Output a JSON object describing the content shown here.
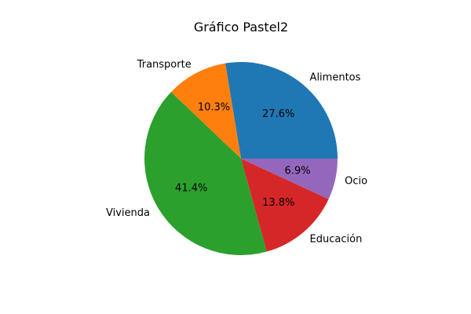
{
  "chart_data": {
    "type": "pie",
    "title": "Gráfico Pastel2",
    "start_angle_deg": 0,
    "direction": "counterclockwise",
    "slices": [
      {
        "label": "Alimentos",
        "value": 27.6,
        "pct_label": "27.6%",
        "color": "#1f77b4"
      },
      {
        "label": "Transporte",
        "value": 10.3,
        "pct_label": "10.3%",
        "color": "#ff7f0e"
      },
      {
        "label": "Vivienda",
        "value": 41.4,
        "pct_label": "41.4%",
        "color": "#2ca02c"
      },
      {
        "label": "Educación",
        "value": 13.8,
        "pct_label": "13.8%",
        "color": "#d62728"
      },
      {
        "label": "Ocio",
        "value": 6.9,
        "pct_label": "6.9%",
        "color": "#9467bd"
      }
    ]
  }
}
